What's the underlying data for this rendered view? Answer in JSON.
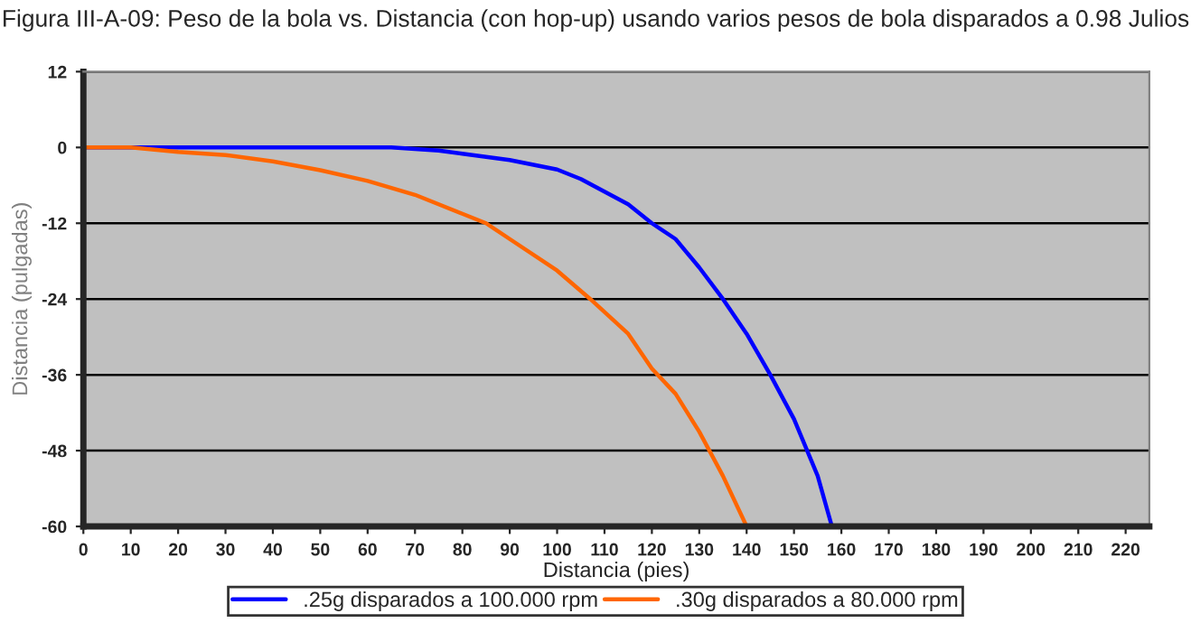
{
  "chart_data": {
    "type": "line",
    "title": "Figura III-A-09: Peso de la bola vs. Distancia (con hop-up) usando varios pesos de bola disparados a 0.98 Julios",
    "xlabel": "Distancia (pies)",
    "ylabel": "Distancia (pulgadas)",
    "series": [
      {
        "name": ".25g disparados a 100.000 rpm",
        "color": "#0000ff",
        "x": [
          0,
          10,
          20,
          40,
          65,
          75,
          80,
          90,
          100,
          105,
          110,
          115,
          120,
          125,
          130,
          135,
          140,
          145,
          150,
          155,
          158
        ],
        "values": [
          0,
          0,
          0,
          0,
          0,
          -0.5,
          -1,
          -2,
          -3.5,
          -5,
          -7,
          -9,
          -12,
          -14.5,
          -19,
          -24,
          -29.5,
          -36,
          -43,
          -52,
          -60
        ]
      },
      {
        "name": ".30g disparados a 80.000 rpm",
        "color": "#ff6600",
        "x": [
          0,
          10,
          20,
          30,
          40,
          50,
          60,
          70,
          80,
          85,
          90,
          100,
          107,
          115,
          120,
          125,
          130,
          135,
          140
        ],
        "values": [
          0,
          0,
          -0.7,
          -1.2,
          -2.2,
          -3.6,
          -5.3,
          -7.5,
          -10.5,
          -12,
          -14.5,
          -19.5,
          -24,
          -29.5,
          -35,
          -39,
          -45,
          -52,
          -60
        ]
      }
    ],
    "xlim": [
      0,
      225
    ],
    "xticks": [
      0,
      10,
      20,
      30,
      40,
      50,
      60,
      70,
      80,
      90,
      100,
      110,
      120,
      130,
      140,
      150,
      160,
      170,
      180,
      190,
      200,
      210,
      220
    ],
    "ylim": [
      -60,
      12
    ],
    "yticks": [
      -60,
      -48,
      -36,
      -24,
      -12,
      0,
      12
    ],
    "grid": "y",
    "legend": "bottom",
    "marker": "none",
    "line_style": "solid"
  }
}
